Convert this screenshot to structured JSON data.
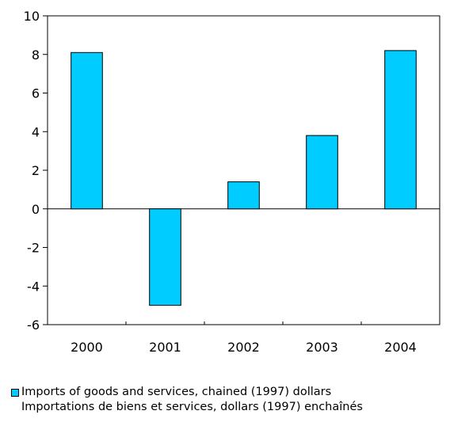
{
  "chart_data": {
    "type": "bar",
    "categories": [
      "2000",
      "2001",
      "2002",
      "2003",
      "2004"
    ],
    "series": [
      {
        "name": "Imports of goods and services, chained (1997) dollars / Importations de biens et services, dollars (1997) enchaînés",
        "values": [
          8.1,
          -5.0,
          1.4,
          3.8,
          8.2
        ]
      }
    ],
    "ylim": [
      -6,
      10
    ],
    "yticks": [
      -6,
      -4,
      -2,
      0,
      2,
      4,
      6,
      8,
      10
    ],
    "grid": false,
    "legend_position": "bottom-left",
    "bar_color": "#00CCFF",
    "title": "",
    "xlabel": "",
    "ylabel": ""
  },
  "legend": {
    "line1": "Imports of goods and services, chained (1997) dollars",
    "line2": "Importations de biens et services, dollars (1997) enchaînés",
    "color": "#00CCFF"
  }
}
